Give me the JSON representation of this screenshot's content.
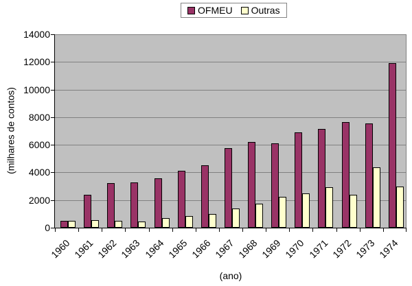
{
  "chart_data": {
    "type": "bar",
    "title": "",
    "categories": [
      "1960",
      "1961",
      "1962",
      "1963",
      "1964",
      "1965",
      "1966",
      "1967",
      "1968",
      "1969",
      "1970",
      "1971",
      "1972",
      "1973",
      "1974"
    ],
    "series": [
      {
        "name": "OFMEU",
        "color": "#993366",
        "values": [
          500,
          2400,
          3250,
          3300,
          3550,
          4100,
          4500,
          5750,
          6200,
          6100,
          6900,
          7150,
          7650,
          7550,
          11900
        ]
      },
      {
        "name": "Outras",
        "color": "#FFFFCC",
        "values": [
          500,
          550,
          500,
          450,
          700,
          850,
          1000,
          1400,
          1750,
          2250,
          2500,
          2950,
          2400,
          4350,
          3000
        ]
      }
    ],
    "xlabel": "(ano)",
    "ylabel": "(milhares de contos)",
    "ylim": [
      0,
      14000
    ],
    "yticks": [
      0,
      2000,
      4000,
      6000,
      8000,
      10000,
      12000,
      14000
    ],
    "legend_position": "top-center",
    "grid": "horizontal",
    "colors": {
      "plot_bg": "#C0C0C0",
      "grid": "#808080",
      "axis": "#000000",
      "bar_border": "#000000",
      "legend_border": "#848484",
      "background": "#FFFFFF",
      "text": "#000000"
    }
  }
}
